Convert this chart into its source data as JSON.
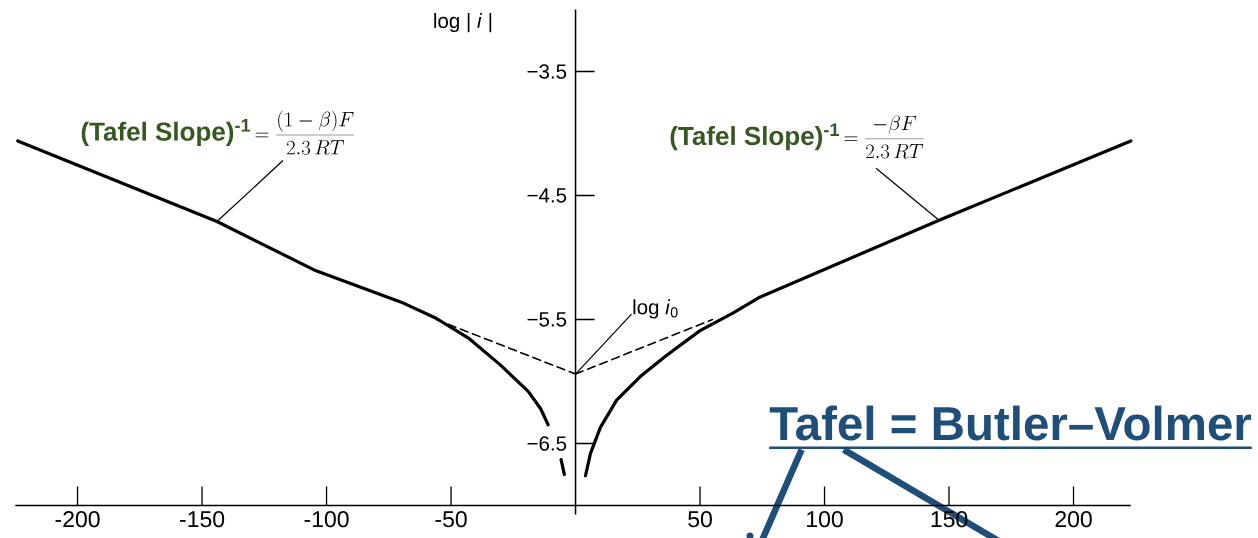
{
  "chart_data": {
    "type": "line",
    "ylabel": "log | *i* |",
    "xlim": [
      -225,
      223
    ],
    "ylim": [
      -7,
      -3
    ],
    "xticks": [
      -200,
      -150,
      -100,
      -50,
      50,
      100,
      150,
      200
    ],
    "yticks": [
      {
        "value": -3.5,
        "label": "−3.5"
      },
      {
        "value": -4.5,
        "label": "−4.5"
      },
      {
        "value": -5.5,
        "label": "−5.5"
      },
      {
        "value": -6.5,
        "label": "−6.5"
      }
    ],
    "series": [
      {
        "color": "#000000",
        "line_style": "solid",
        "x": [
          -224,
          -144,
          -105,
          -70,
          -56,
          -43,
          -30,
          -19,
          -14,
          -11,
          -8,
          -5.8,
          -4.5
        ],
        "values": [
          -4.06,
          -4.71,
          -5.1,
          -5.36,
          -5.49,
          -5.65,
          -5.87,
          -6.08,
          -6.22,
          -6.35,
          null,
          -6.63,
          -6.75
        ]
      },
      {
        "color": "#000000",
        "line_style": "solid",
        "x": [
          4,
          6,
          10,
          16.5,
          26,
          36.5,
          50,
          63,
          74,
          146,
          223
        ],
        "values": [
          -6.76,
          -6.58,
          -6.37,
          -6.15,
          -5.96,
          -5.79,
          -5.59,
          -5.45,
          -5.32,
          -4.7,
          -4.06
        ]
      },
      {
        "color": "#000000",
        "line_style": "dashed",
        "x": [
          -56,
          0
        ],
        "values": [
          -5.5,
          -5.94
        ]
      },
      {
        "color": "#000000",
        "line_style": "dashed",
        "x": [
          0,
          55
        ],
        "values": [
          -5.94,
          -5.5
        ]
      }
    ],
    "annotations": [
      "(Tafel Slope)$^{-1}$",
      {
        "text": "= \\frac{(1-\\beta)F}{2.3\\,RT}",
        "x": -144,
        "y": -4.71
      },
      "(Tafel Slope)$^{-1}$",
      {
        "text": "= \\frac{-\\beta F}{2.3\\,RT}",
        "x": 146,
        "y": -4.7
      },
      {
        "text": "log *i*$_{0}$",
        "x": 0,
        "y": -5.94
      },
      "Tafel = Butler–Volmer"
    ]
  }
}
